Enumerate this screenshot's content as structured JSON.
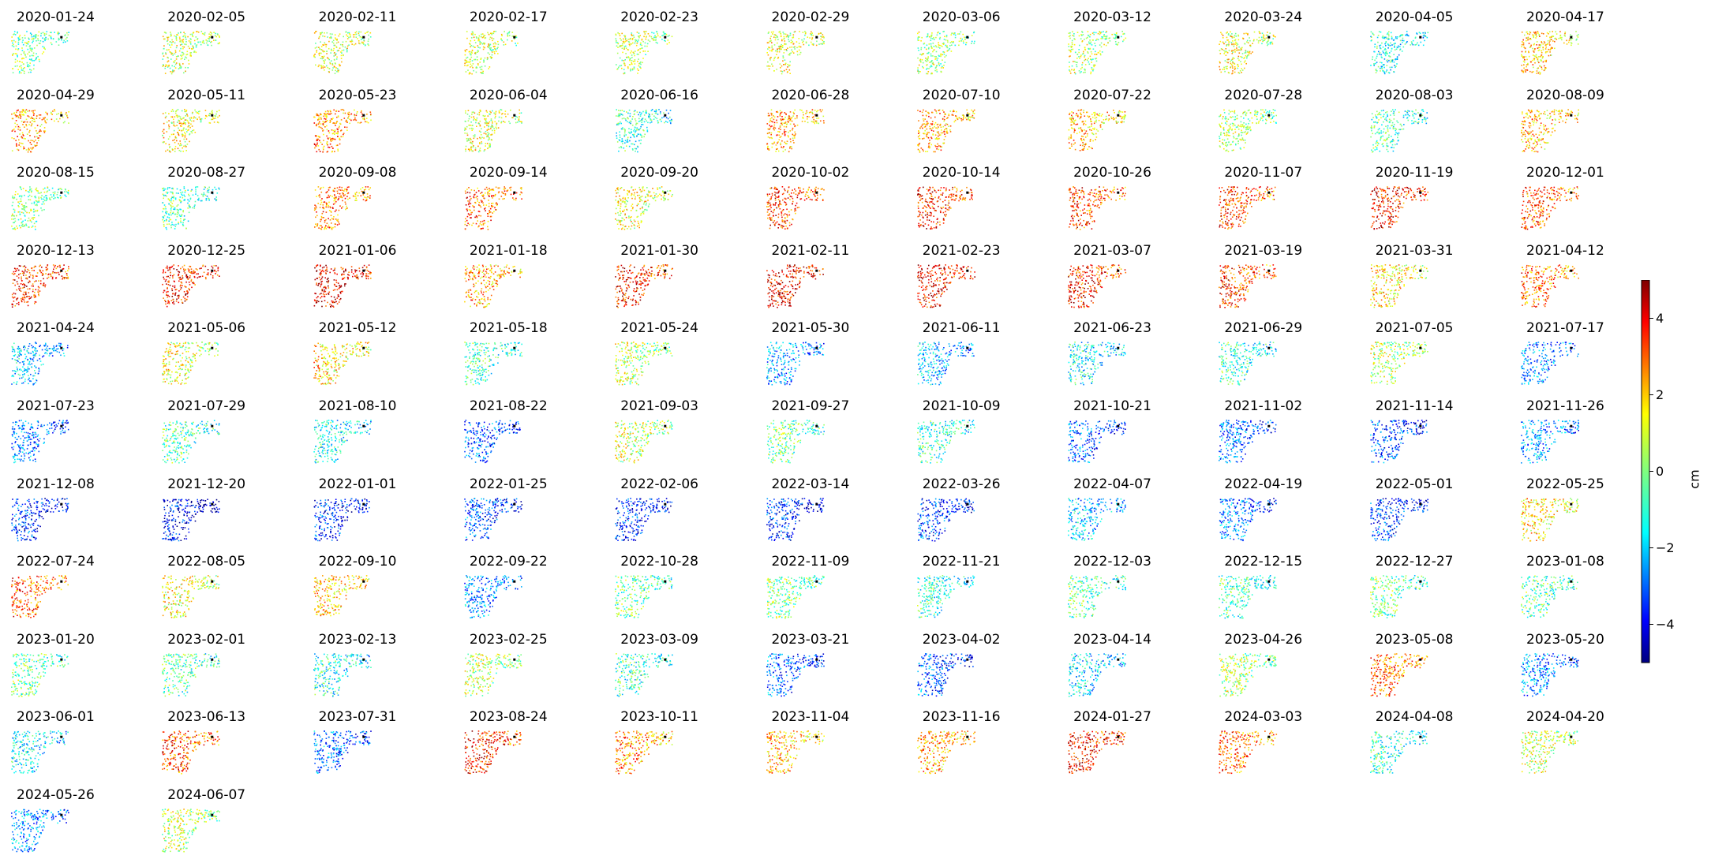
{
  "chart_data": {
    "type": "heatmap",
    "title": "",
    "colormap": "jet",
    "colorbar": {
      "label": "cm",
      "vmin": -5,
      "vmax": 5,
      "ticks": [
        4,
        2,
        0,
        -2,
        -4
      ],
      "tick_labels": [
        "4",
        "2",
        "0",
        "−2",
        "−4"
      ]
    },
    "panels": [
      {
        "date": "2020-01-24",
        "mean": -0.3
      },
      {
        "date": "2020-02-05",
        "mean": 0.5
      },
      {
        "date": "2020-02-11",
        "mean": 0.8
      },
      {
        "date": "2020-02-17",
        "mean": 0.6
      },
      {
        "date": "2020-02-23",
        "mean": 0.4
      },
      {
        "date": "2020-02-29",
        "mean": 1.0
      },
      {
        "date": "2020-03-06",
        "mean": 0.2
      },
      {
        "date": "2020-03-12",
        "mean": 0.4
      },
      {
        "date": "2020-03-24",
        "mean": 0.9
      },
      {
        "date": "2020-04-05",
        "mean": -1.2
      },
      {
        "date": "2020-04-17",
        "mean": 1.6
      },
      {
        "date": "2020-04-29",
        "mean": 2.0
      },
      {
        "date": "2020-05-11",
        "mean": 1.0
      },
      {
        "date": "2020-05-23",
        "mean": 2.2
      },
      {
        "date": "2020-06-04",
        "mean": 0.8
      },
      {
        "date": "2020-06-16",
        "mean": -1.0
      },
      {
        "date": "2020-06-28",
        "mean": 2.0
      },
      {
        "date": "2020-07-10",
        "mean": 2.0
      },
      {
        "date": "2020-07-22",
        "mean": 1.8
      },
      {
        "date": "2020-07-28",
        "mean": 0.2
      },
      {
        "date": "2020-08-03",
        "mean": -0.8
      },
      {
        "date": "2020-08-09",
        "mean": 1.8
      },
      {
        "date": "2020-08-15",
        "mean": 0.0
      },
      {
        "date": "2020-08-27",
        "mean": -0.6
      },
      {
        "date": "2020-09-08",
        "mean": 2.4
      },
      {
        "date": "2020-09-14",
        "mean": 2.6
      },
      {
        "date": "2020-09-20",
        "mean": 1.0
      },
      {
        "date": "2020-10-02",
        "mean": 3.0
      },
      {
        "date": "2020-10-14",
        "mean": 3.2
      },
      {
        "date": "2020-10-26",
        "mean": 3.0
      },
      {
        "date": "2020-11-07",
        "mean": 3.0
      },
      {
        "date": "2020-11-19",
        "mean": 3.4
      },
      {
        "date": "2020-12-01",
        "mean": 2.8
      },
      {
        "date": "2020-12-13",
        "mean": 3.2
      },
      {
        "date": "2020-12-25",
        "mean": 3.4
      },
      {
        "date": "2021-01-06",
        "mean": 3.8
      },
      {
        "date": "2021-01-18",
        "mean": 2.0
      },
      {
        "date": "2021-01-30",
        "mean": 3.4
      },
      {
        "date": "2021-02-11",
        "mean": 3.6
      },
      {
        "date": "2021-02-23",
        "mean": 3.6
      },
      {
        "date": "2021-03-07",
        "mean": 3.2
      },
      {
        "date": "2021-03-19",
        "mean": 3.0
      },
      {
        "date": "2021-03-31",
        "mean": 1.4
      },
      {
        "date": "2021-04-12",
        "mean": 2.4
      },
      {
        "date": "2021-04-24",
        "mean": -2.0
      },
      {
        "date": "2021-05-06",
        "mean": 0.8
      },
      {
        "date": "2021-05-12",
        "mean": 1.4
      },
      {
        "date": "2021-05-18",
        "mean": -0.8
      },
      {
        "date": "2021-05-24",
        "mean": 0.4
      },
      {
        "date": "2021-05-30",
        "mean": -2.4
      },
      {
        "date": "2021-06-11",
        "mean": -2.2
      },
      {
        "date": "2021-06-23",
        "mean": -1.4
      },
      {
        "date": "2021-06-29",
        "mean": -1.0
      },
      {
        "date": "2021-07-05",
        "mean": 0.4
      },
      {
        "date": "2021-07-17",
        "mean": -2.6
      },
      {
        "date": "2021-07-23",
        "mean": -2.8
      },
      {
        "date": "2021-07-29",
        "mean": -0.6
      },
      {
        "date": "2021-08-10",
        "mean": -1.4
      },
      {
        "date": "2021-08-22",
        "mean": -3.0
      },
      {
        "date": "2021-09-03",
        "mean": 0.6
      },
      {
        "date": "2021-09-27",
        "mean": -0.4
      },
      {
        "date": "2021-10-09",
        "mean": -1.0
      },
      {
        "date": "2021-10-21",
        "mean": -3.0
      },
      {
        "date": "2021-11-02",
        "mean": -3.0
      },
      {
        "date": "2021-11-14",
        "mean": -3.2
      },
      {
        "date": "2021-11-26",
        "mean": -2.4
      },
      {
        "date": "2021-12-08",
        "mean": -3.6
      },
      {
        "date": "2021-12-20",
        "mean": -4.0
      },
      {
        "date": "2022-01-01",
        "mean": -3.6
      },
      {
        "date": "2022-01-25",
        "mean": -3.2
      },
      {
        "date": "2022-02-06",
        "mean": -3.6
      },
      {
        "date": "2022-03-14",
        "mean": -3.6
      },
      {
        "date": "2022-03-26",
        "mean": -3.4
      },
      {
        "date": "2022-04-07",
        "mean": -2.0
      },
      {
        "date": "2022-04-19",
        "mean": -2.8
      },
      {
        "date": "2022-05-01",
        "mean": -3.4
      },
      {
        "date": "2022-05-25",
        "mean": 1.4
      },
      {
        "date": "2022-07-24",
        "mean": 2.6
      },
      {
        "date": "2022-08-05",
        "mean": 1.0
      },
      {
        "date": "2022-09-10",
        "mean": 1.6
      },
      {
        "date": "2022-09-22",
        "mean": -2.6
      },
      {
        "date": "2022-10-28",
        "mean": -0.4
      },
      {
        "date": "2022-11-09",
        "mean": -0.2
      },
      {
        "date": "2022-11-21",
        "mean": -1.0
      },
      {
        "date": "2022-12-03",
        "mean": -0.6
      },
      {
        "date": "2022-12-15",
        "mean": -0.8
      },
      {
        "date": "2022-12-27",
        "mean": -0.4
      },
      {
        "date": "2023-01-08",
        "mean": -0.6
      },
      {
        "date": "2023-01-20",
        "mean": -0.4
      },
      {
        "date": "2023-02-01",
        "mean": -0.6
      },
      {
        "date": "2023-02-13",
        "mean": -1.2
      },
      {
        "date": "2023-02-25",
        "mean": 0.4
      },
      {
        "date": "2023-03-09",
        "mean": -1.0
      },
      {
        "date": "2023-03-21",
        "mean": -3.0
      },
      {
        "date": "2023-04-02",
        "mean": -3.2
      },
      {
        "date": "2023-04-14",
        "mean": -1.8
      },
      {
        "date": "2023-04-26",
        "mean": 0.2
      },
      {
        "date": "2023-05-08",
        "mean": 2.6
      },
      {
        "date": "2023-05-20",
        "mean": -2.6
      },
      {
        "date": "2023-06-01",
        "mean": -1.6
      },
      {
        "date": "2023-06-13",
        "mean": 2.8
      },
      {
        "date": "2023-07-31",
        "mean": -2.8
      },
      {
        "date": "2023-08-24",
        "mean": 3.2
      },
      {
        "date": "2023-10-11",
        "mean": 2.2
      },
      {
        "date": "2023-11-04",
        "mean": 1.8
      },
      {
        "date": "2023-11-16",
        "mean": 2.0
      },
      {
        "date": "2024-01-27",
        "mean": 3.4
      },
      {
        "date": "2024-03-03",
        "mean": 2.6
      },
      {
        "date": "2024-04-08",
        "mean": -1.0
      },
      {
        "date": "2024-04-20",
        "mean": 0.6
      },
      {
        "date": "2024-05-26",
        "mean": -2.4
      },
      {
        "date": "2024-06-07",
        "mean": 0.4
      }
    ]
  }
}
